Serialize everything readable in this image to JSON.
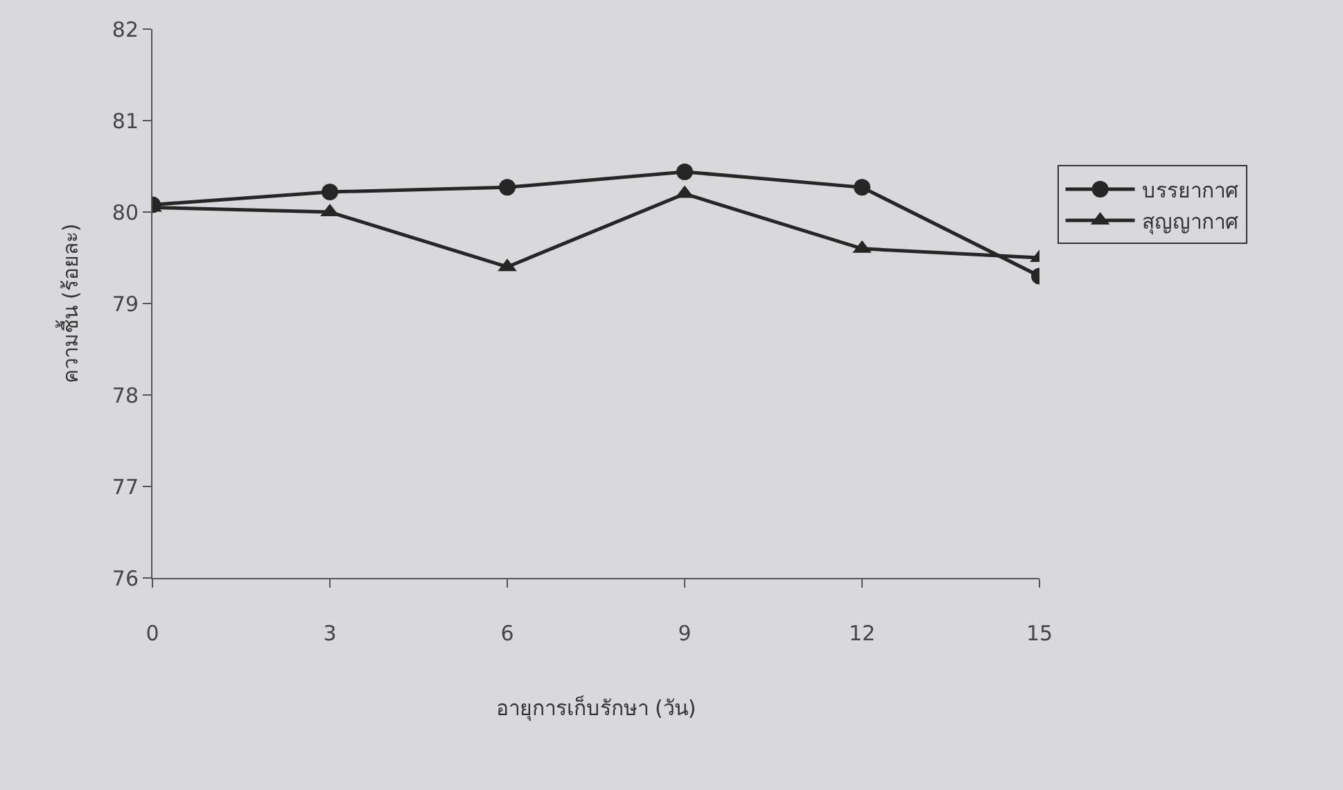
{
  "chart_data": {
    "type": "line",
    "xlabel": "อายุการเก็บรักษา (วัน)",
    "ylabel": "ความชื้น (ร้อยละ)",
    "x": [
      0,
      3,
      6,
      9,
      12,
      15
    ],
    "xlim": [
      0,
      15
    ],
    "xticks": [
      0,
      3,
      6,
      9,
      12,
      15
    ],
    "ylim": [
      76,
      82
    ],
    "yticks": [
      76,
      77,
      78,
      79,
      80,
      81,
      82
    ],
    "grid": false,
    "legend": "right",
    "line_style": "solid",
    "series": [
      {
        "name": "บรรยากาศ",
        "color": "#262626",
        "marker": "circle",
        "values": [
          80.08,
          80.22,
          80.27,
          80.44,
          80.27,
          79.3
        ]
      },
      {
        "name": "สุญญากาศ",
        "color": "#262626",
        "marker": "triangle",
        "values": [
          80.05,
          80.0,
          79.4,
          80.2,
          79.6,
          79.5
        ]
      }
    ]
  }
}
